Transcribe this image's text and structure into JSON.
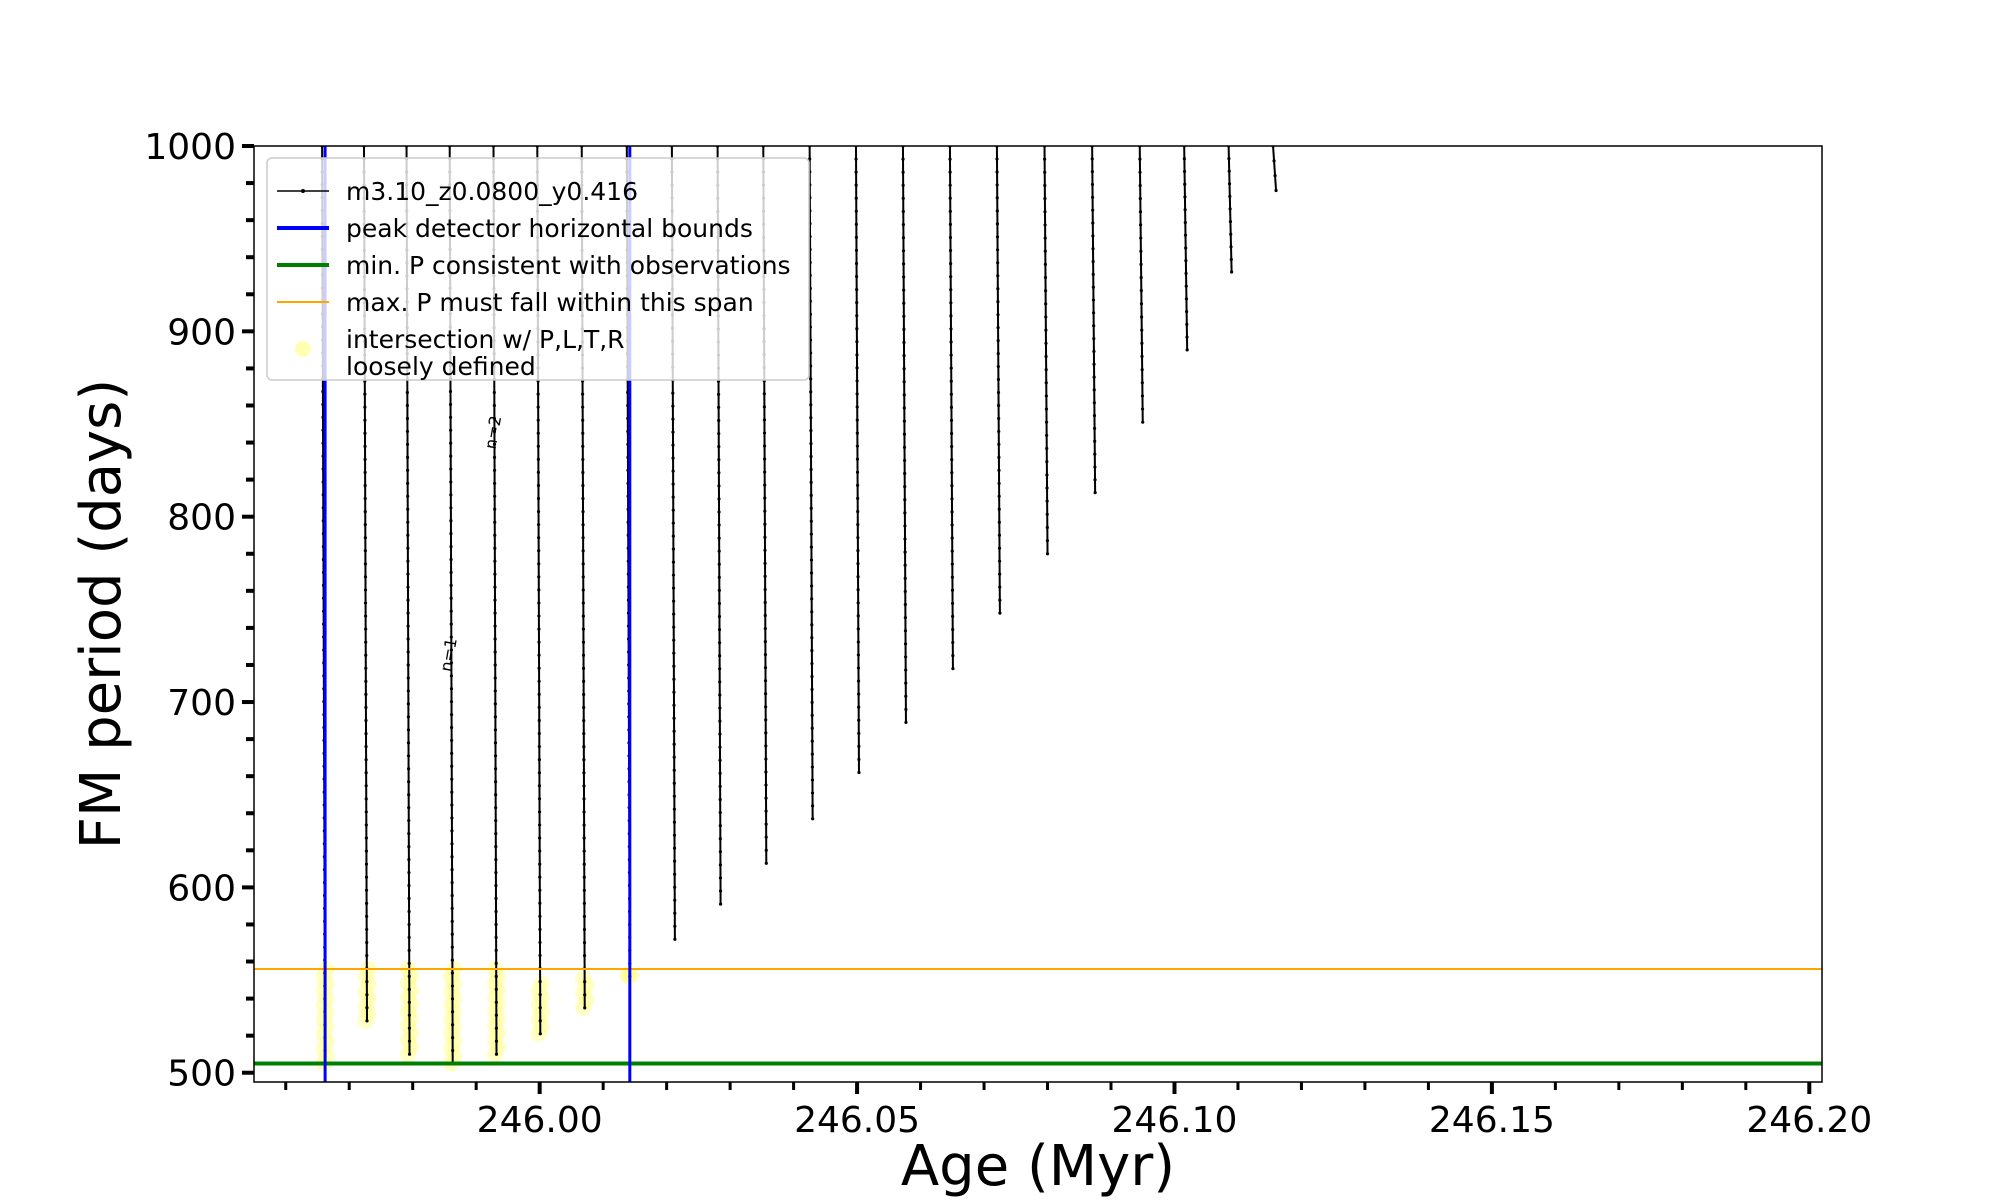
{
  "chart_data": {
    "type": "line",
    "xlabel": "Age (Myr)",
    "ylabel": "FM period (days)",
    "xlim": [
      245.955,
      246.202
    ],
    "ylim": [
      495,
      1000
    ],
    "x_ticks": [
      246.0,
      246.05,
      246.1,
      246.15,
      246.2
    ],
    "x_tick_labels": [
      "246.00",
      "246.05",
      "246.10",
      "246.15",
      "246.20"
    ],
    "y_ticks": [
      500,
      600,
      700,
      800,
      900,
      1000
    ],
    "y_tick_labels": [
      "500",
      "600",
      "700",
      "800",
      "900",
      "1000"
    ],
    "grid": false,
    "legend_position": "top-left",
    "legend": [
      {
        "label": "m3.10_z0.0800_y0.416",
        "style": "line-marker",
        "color": "#000000"
      },
      {
        "label": "peak detector horizontal bounds",
        "style": "line",
        "color": "#0000ff"
      },
      {
        "label": "min. P consistent with observations",
        "style": "line",
        "color": "#008000"
      },
      {
        "label": "max. P must fall within this span",
        "style": "line",
        "color": "#ffa500"
      },
      {
        "label": "intersection w/ P,L,T,R",
        "label2": "loosely defined",
        "style": "marker",
        "color": "#ffff80"
      }
    ],
    "series": [
      {
        "name": "m3.10_z0.0800_y0.416",
        "color": "#000000",
        "spikes": [
          {
            "x": 245.9662,
            "min": 505,
            "max": 1000
          },
          {
            "x": 245.9728,
            "min": 528,
            "max": 1000
          },
          {
            "x": 245.9795,
            "min": 510,
            "max": 1000
          },
          {
            "x": 245.9863,
            "min": 505,
            "max": 1000
          },
          {
            "x": 245.9932,
            "min": 510,
            "max": 1000
          },
          {
            "x": 246.0001,
            "min": 521,
            "max": 1000
          },
          {
            "x": 246.0071,
            "min": 535,
            "max": 1000
          },
          {
            "x": 246.0142,
            "min": 552,
            "max": 1000
          },
          {
            "x": 246.0213,
            "min": 572,
            "max": 1000
          },
          {
            "x": 246.0285,
            "min": 591,
            "max": 1000
          },
          {
            "x": 246.0357,
            "min": 613,
            "max": 1000
          },
          {
            "x": 246.043,
            "min": 637,
            "max": 1000
          },
          {
            "x": 246.0503,
            "min": 662,
            "max": 1000
          },
          {
            "x": 246.0577,
            "min": 689,
            "max": 1000
          },
          {
            "x": 246.0651,
            "min": 718,
            "max": 1000
          },
          {
            "x": 246.0725,
            "min": 748,
            "max": 1000
          },
          {
            "x": 246.08,
            "min": 780,
            "max": 1000
          },
          {
            "x": 246.0875,
            "min": 813,
            "max": 1000
          },
          {
            "x": 246.095,
            "min": 851,
            "max": 1000
          },
          {
            "x": 246.102,
            "min": 890,
            "max": 1000
          },
          {
            "x": 246.109,
            "min": 932,
            "max": 1000
          },
          {
            "x": 246.116,
            "min": 976,
            "max": 1000
          }
        ]
      }
    ],
    "vertical_lines": [
      {
        "name": "peak detector horizontal bounds",
        "x": 245.9662,
        "color": "#0000ff"
      },
      {
        "name": "peak detector horizontal bounds",
        "x": 246.0142,
        "color": "#0000ff"
      }
    ],
    "horizontal_lines": [
      {
        "name": "min. P consistent with observations",
        "y": 505,
        "color": "#008000"
      },
      {
        "name": "max. P must fall within this span",
        "y": 556,
        "color": "#ffa500"
      }
    ],
    "intersections": [
      {
        "x": 245.9662,
        "ymin": 505,
        "ymax": 556
      },
      {
        "x": 245.9728,
        "ymin": 528,
        "ymax": 556
      },
      {
        "x": 245.9795,
        "ymin": 510,
        "ymax": 556
      },
      {
        "x": 245.9863,
        "ymin": 505,
        "ymax": 556
      },
      {
        "x": 245.9932,
        "ymin": 510,
        "ymax": 556
      },
      {
        "x": 246.0001,
        "ymin": 521,
        "ymax": 548
      },
      {
        "x": 246.0071,
        "ymin": 535,
        "ymax": 551
      },
      {
        "x": 246.0142,
        "ymin": 552,
        "ymax": 553
      }
    ],
    "annotations": [
      {
        "text": "n=1",
        "x": 245.9865,
        "y": 725
      },
      {
        "text": "n=2",
        "x": 245.9935,
        "y": 845
      }
    ]
  }
}
